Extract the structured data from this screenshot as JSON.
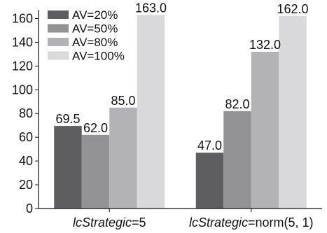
{
  "chart_data": {
    "type": "bar",
    "categories": [
      {
        "prefix": "",
        "italic": "lcStrategic",
        "suffix": "=5"
      },
      {
        "prefix": "",
        "italic": "lcStrategic",
        "suffix": "=norm(5, 1)"
      }
    ],
    "series": [
      {
        "name": "AV=20%",
        "color": "#5e5e60",
        "values": [
          69.5,
          47.0
        ],
        "labels": [
          "69.5",
          "47.0"
        ]
      },
      {
        "name": "AV=50%",
        "color": "#939395",
        "values": [
          62.0,
          82.0
        ],
        "labels": [
          "62.0",
          "82.0"
        ]
      },
      {
        "name": "AV=80%",
        "color": "#b3b3b5",
        "values": [
          85.0,
          132.0
        ],
        "labels": [
          "85.0",
          "132.0"
        ]
      },
      {
        "name": "AV=100%",
        "color": "#d9d9db",
        "values": [
          163.0,
          162.0
        ],
        "labels": [
          "163.0",
          "162.0"
        ]
      }
    ],
    "yticks": [
      0,
      20,
      40,
      60,
      80,
      100,
      120,
      140,
      160
    ],
    "ylim": [
      0,
      165
    ],
    "title": "",
    "xlabel": "",
    "ylabel": "",
    "grid": false,
    "legend_position": "top-left"
  }
}
